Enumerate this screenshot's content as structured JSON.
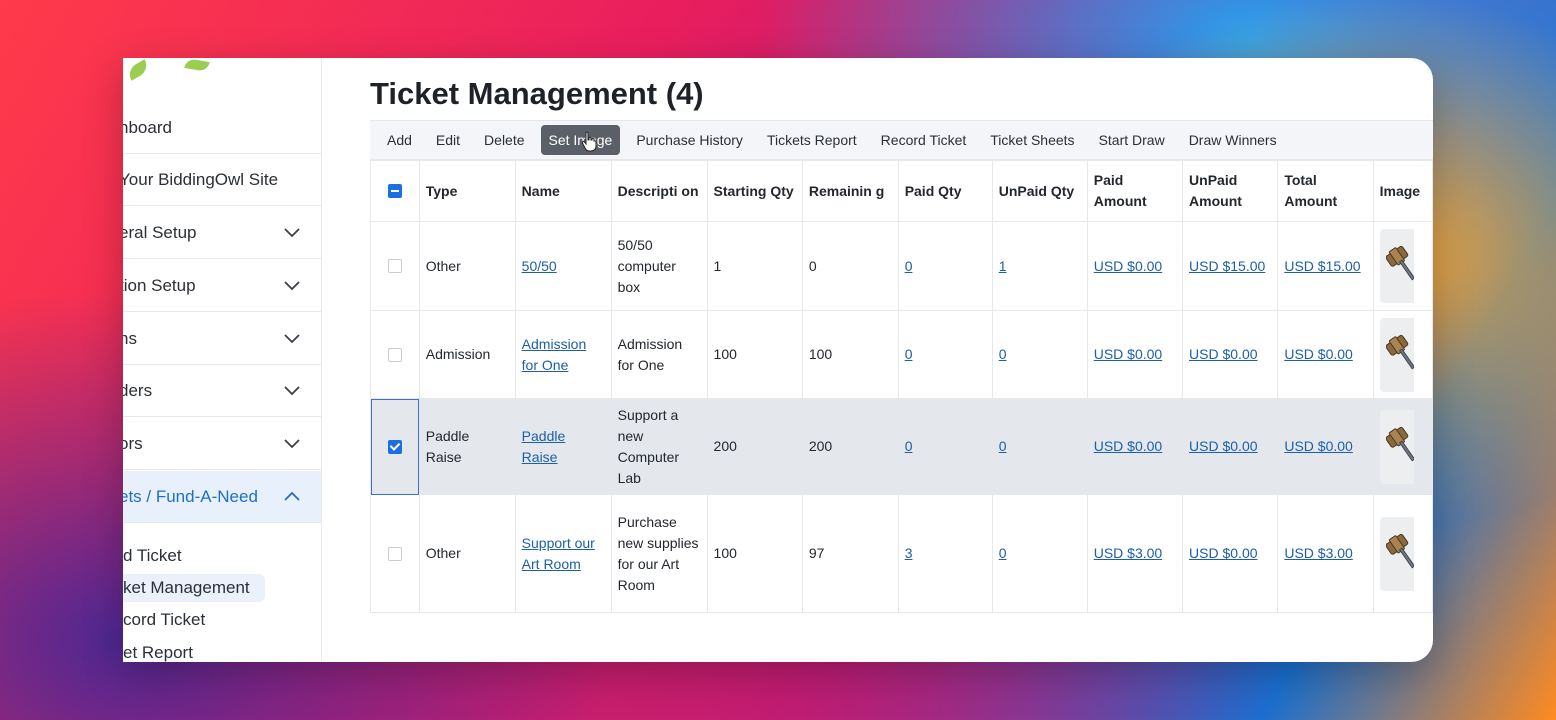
{
  "page": {
    "title": "Ticket Management (4)"
  },
  "sidebar": {
    "items": [
      {
        "label": "hboard",
        "has_chevron": false
      },
      {
        "label": " Your BiddingOwl Site",
        "has_chevron": false
      },
      {
        "label": "eral Setup",
        "has_chevron": true
      },
      {
        "label": "tion Setup",
        "has_chevron": true
      },
      {
        "label": "ns",
        "has_chevron": true
      },
      {
        "label": "ders",
        "has_chevron": true
      },
      {
        "label": "ors",
        "has_chevron": true
      },
      {
        "label": "ets / Fund-A-Need",
        "has_chevron": true,
        "expanded": true
      }
    ],
    "sub_items": [
      {
        "label": "d Ticket"
      },
      {
        "label": "ket Management"
      },
      {
        "label": "cord Ticket"
      },
      {
        "label": "et Report"
      }
    ]
  },
  "toolbar": {
    "buttons": [
      "Add",
      "Edit",
      "Delete",
      "Set Image",
      "Purchase History",
      "Tickets Report",
      "Record Ticket",
      "Ticket Sheets",
      "Start Draw",
      "Draw Winners"
    ],
    "active": "Set Image"
  },
  "table": {
    "headers": {
      "type": "Type",
      "name": "Name",
      "description": "Descripti on",
      "starting_qty": "Starting Qty",
      "remaining": "Remainin g",
      "paid_qty": "Paid Qty",
      "unpaid_qty": "UnPaid Qty",
      "paid_amount": "Paid Amount",
      "unpaid_amount": "UnPaid Amount",
      "total_amount": "Total Amount",
      "image": "Image"
    },
    "rows": [
      {
        "checked": false,
        "type": "Other",
        "name": "50/50",
        "description": "50/50 computer box",
        "starting_qty": "1",
        "remaining": "0",
        "paid_qty": "0",
        "unpaid_qty": "1",
        "paid_amount": "USD $0.00",
        "unpaid_amount": "USD $15.00",
        "total_amount": "USD $15.00"
      },
      {
        "checked": false,
        "type": "Admission",
        "name": "Admission for One",
        "description": "Admission for One",
        "starting_qty": "100",
        "remaining": "100",
        "paid_qty": "0",
        "unpaid_qty": "0",
        "paid_amount": "USD $0.00",
        "unpaid_amount": "USD $0.00",
        "total_amount": "USD $0.00"
      },
      {
        "checked": true,
        "type": "Paddle Raise",
        "name": "Paddle Raise",
        "description": "Support a new Computer Lab",
        "starting_qty": "200",
        "remaining": "200",
        "paid_qty": "0",
        "unpaid_qty": "0",
        "paid_amount": "USD $0.00",
        "unpaid_amount": "USD $0.00",
        "total_amount": "USD $0.00"
      },
      {
        "checked": false,
        "type": "Other",
        "name": "Support our Art Room",
        "description": "Purchase new supplies for our Art Room",
        "starting_qty": "100",
        "remaining": "97",
        "paid_qty": "3",
        "unpaid_qty": "0",
        "paid_amount": "USD $3.00",
        "unpaid_amount": "USD $0.00",
        "total_amount": "USD $3.00"
      }
    ]
  },
  "icons": {
    "row_image": "gavel-icon",
    "chevron": "chevron-down-icon",
    "cursor": "pointer-hand-icon"
  },
  "colors": {
    "accent": "#1b6fe0",
    "link": "#1c5fa8",
    "active_toolbar_bg": "#5b6068",
    "active_sidebar_text": "#1f6fc5"
  }
}
